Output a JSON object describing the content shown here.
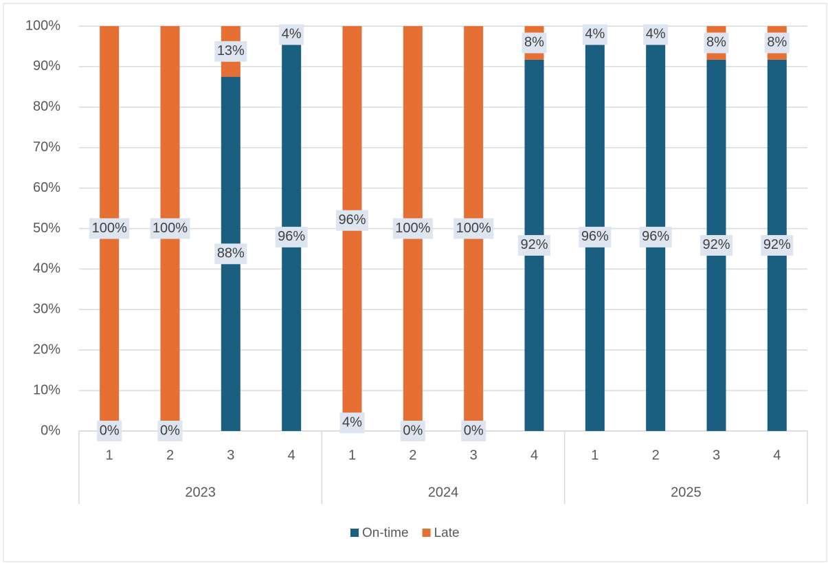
{
  "chart_data": {
    "type": "stacked_bar",
    "categories": [
      "1",
      "2",
      "3",
      "4",
      "1",
      "2",
      "3",
      "4",
      "1",
      "2",
      "3",
      "4"
    ],
    "groups": [
      "2023",
      "2024",
      "2025"
    ],
    "series": [
      {
        "name": "On-time",
        "color": "#1a5e80",
        "values": [
          0,
          0,
          87.5,
          95.8,
          4,
          0,
          0,
          91.7,
          95.8,
          95.8,
          91.7,
          91.7
        ],
        "value_labels": [
          "0%",
          "0%",
          "88%",
          "96%",
          "4%",
          "0%",
          "0%",
          "92%",
          "96%",
          "96%",
          "92%",
          "92%"
        ]
      },
      {
        "name": "Late",
        "color": "#e66f33",
        "values": [
          100,
          100,
          12.5,
          4.2,
          96,
          100,
          100,
          8.3,
          4.2,
          4.2,
          8.3,
          8.3
        ],
        "value_labels": [
          "100%",
          "100%",
          "13%",
          "4%",
          "96%",
          "100%",
          "100%",
          "8%",
          "4%",
          "4%",
          "8%",
          "8%"
        ]
      }
    ],
    "ylim": [
      0,
      100
    ],
    "yticks": [
      {
        "value": 0,
        "label": "0%"
      },
      {
        "value": 10,
        "label": "10%"
      },
      {
        "value": 20,
        "label": "20%"
      },
      {
        "value": 30,
        "label": "30%"
      },
      {
        "value": 40,
        "label": "40%"
      },
      {
        "value": 50,
        "label": "50%"
      },
      {
        "value": 60,
        "label": "60%"
      },
      {
        "value": 70,
        "label": "70%"
      },
      {
        "value": 80,
        "label": "80%"
      },
      {
        "value": 90,
        "label": "90%"
      },
      {
        "value": 100,
        "label": "100%"
      }
    ],
    "grid": true,
    "legend": "bottom"
  }
}
